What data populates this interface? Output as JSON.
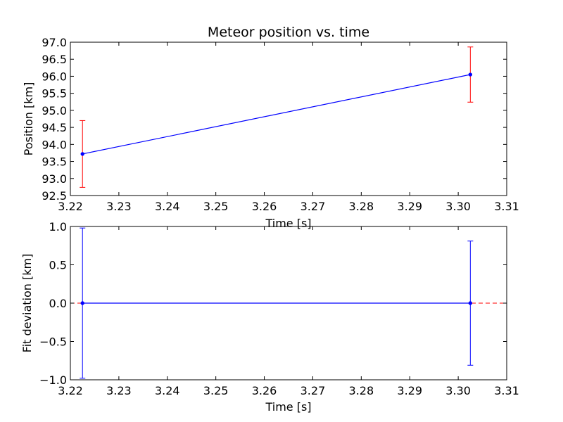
{
  "chart_data": [
    {
      "type": "line",
      "title": "Meteor position vs. time",
      "xlabel": "Time [s]",
      "ylabel": "Position [km]",
      "xlim": [
        3.22,
        3.31
      ],
      "ylim": [
        92.5,
        97.0
      ],
      "x_ticks": [
        "3.22",
        "3.23",
        "3.24",
        "3.25",
        "3.26",
        "3.27",
        "3.28",
        "3.29",
        "3.30",
        "3.31"
      ],
      "y_ticks": [
        "92.5",
        "93.0",
        "93.5",
        "94.0",
        "94.5",
        "95.0",
        "95.5",
        "96.0",
        "96.5",
        "97.0"
      ],
      "grid": false,
      "series": [
        {
          "x": [
            3.2225,
            3.3025
          ],
          "y": [
            93.72,
            96.05
          ],
          "yerr": [
            0.98,
            0.81
          ],
          "color": "#0000ff",
          "errorbar_color": "#ff0000"
        }
      ]
    },
    {
      "type": "line",
      "title": "",
      "xlabel": "Time [s]",
      "ylabel": "Fit deviation [km]",
      "xlim": [
        3.22,
        3.31
      ],
      "ylim": [
        -1.0,
        1.0
      ],
      "x_ticks": [
        "3.22",
        "3.23",
        "3.24",
        "3.25",
        "3.26",
        "3.27",
        "3.28",
        "3.29",
        "3.30",
        "3.31"
      ],
      "y_ticks": [
        "−1.0",
        "−0.5",
        "0.0",
        "0.5",
        "1.0"
      ],
      "grid": false,
      "zero_line": {
        "y": 0.0,
        "color": "#ff0000",
        "style": "dashed"
      },
      "series": [
        {
          "x": [
            3.2225,
            3.3025
          ],
          "y": [
            0.0,
            0.0
          ],
          "yerr": [
            0.98,
            0.81
          ],
          "color": "#0000ff",
          "errorbar_color": "#0000ff"
        }
      ]
    }
  ]
}
